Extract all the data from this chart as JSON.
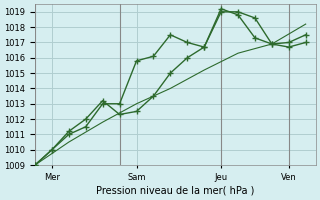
{
  "background_color": "#d6eef0",
  "grid_color": "#b0cdd0",
  "line_color": "#2d6a2d",
  "marker_color": "#2d6a2d",
  "title": "Pression niveau de la mer( hPa )",
  "xlabel": "Pression niveau de la mer( hPa )",
  "day_labels": [
    "Mer",
    "Sam",
    "Jeu",
    "Ven"
  ],
  "day_positions": [
    0.5,
    3.0,
    5.5,
    7.5
  ],
  "ylim": [
    1009,
    1019.5
  ],
  "yticks": [
    1009,
    1010,
    1011,
    1012,
    1013,
    1014,
    1015,
    1016,
    1017,
    1018,
    1019
  ],
  "series1_x": [
    0,
    0.5,
    1.0,
    1.5,
    2.0,
    2.5,
    3.0,
    3.5,
    4.0,
    4.5,
    5.0,
    5.5,
    6.0,
    6.5,
    7.0,
    7.5,
    8.0
  ],
  "series1_y": [
    1009,
    1010,
    1011,
    1011.5,
    1013,
    1013,
    1015.8,
    1016.1,
    1017.5,
    1017.0,
    1016.7,
    1019.0,
    1019.0,
    1018.6,
    1016.9,
    1017.0,
    1017.5
  ],
  "series2_x": [
    0,
    0.5,
    1.0,
    1.5,
    2.0,
    2.5,
    3.0,
    3.5,
    4.0,
    4.5,
    5.0,
    5.5,
    6.0,
    6.5,
    7.0,
    7.5,
    8.0
  ],
  "series2_y": [
    1009,
    1010.0,
    1011.2,
    1012.0,
    1013.2,
    1012.3,
    1012.5,
    1013.5,
    1015.0,
    1016.0,
    1016.7,
    1019.2,
    1018.8,
    1017.3,
    1016.9,
    1016.7,
    1017.0
  ],
  "series3_x": [
    0,
    1.0,
    2.0,
    3.0,
    4.0,
    5.0,
    6.0,
    7.0,
    8.0
  ],
  "series3_y": [
    1009,
    1010.5,
    1011.8,
    1013.0,
    1014.0,
    1015.2,
    1016.3,
    1016.9,
    1018.2
  ],
  "vline_positions": [
    0,
    2.5,
    5.5,
    7.5
  ],
  "xlim": [
    0,
    8.3
  ]
}
